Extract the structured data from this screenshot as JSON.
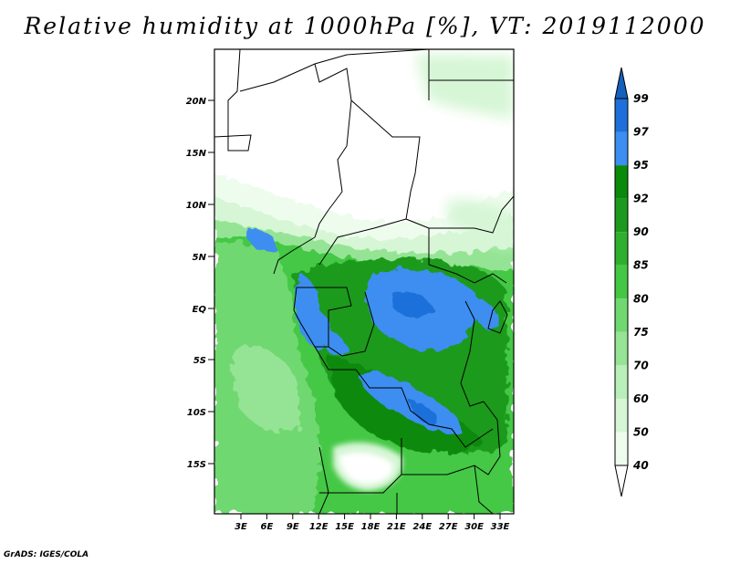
{
  "title": "Relative humidity at 1000hPa [%], VT: 2019112000",
  "credit": "GrADS: IGES/COLA",
  "map": {
    "lat_ticks": [
      "20N",
      "15N",
      "10N",
      "5N",
      "EQ",
      "5S",
      "10S",
      "15S"
    ],
    "lon_ticks": [
      "3E",
      "6E",
      "9E",
      "12E",
      "15E",
      "18E",
      "21E",
      "24E",
      "27E",
      "30E",
      "33E"
    ]
  },
  "colorbar": {
    "labels": [
      "99",
      "97",
      "95",
      "92",
      "90",
      "85",
      "80",
      "75",
      "70",
      "60",
      "50",
      "40"
    ],
    "colors": [
      "#1560bd",
      "#1e6fd9",
      "#3c8ef0",
      "#0a8a0a",
      "#1d9a1d",
      "#2eb02e",
      "#44c844",
      "#6fd86f",
      "#95e495",
      "#b8eeb8",
      "#d6f6d6",
      "#eefcee",
      "#ffffff"
    ]
  }
}
